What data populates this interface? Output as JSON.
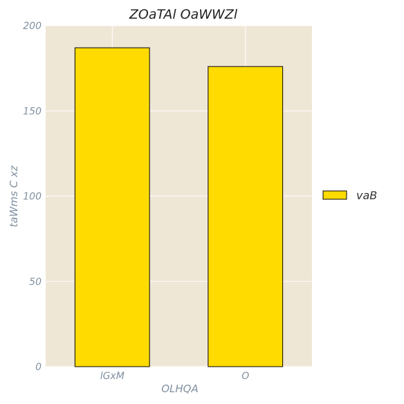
{
  "chart_data": {
    "type": "bar",
    "title": "ZOaTAl OaWWZl",
    "xlabel": "OLHQA",
    "ylabel": "taWms  C  xz",
    "categories": [
      "lGxM",
      "O"
    ],
    "series": [
      {
        "name": "vaB",
        "values": [
          187,
          176
        ]
      }
    ],
    "ylim": [
      0,
      200
    ],
    "yticks": [
      0,
      50,
      100,
      150,
      200
    ],
    "grid": true,
    "legend_position": "right",
    "colors": {
      "bar": "#FFDB00",
      "bar_edge": "#000000",
      "plot_background": "#EFE7D6",
      "grid": "#FFFFFF"
    }
  }
}
